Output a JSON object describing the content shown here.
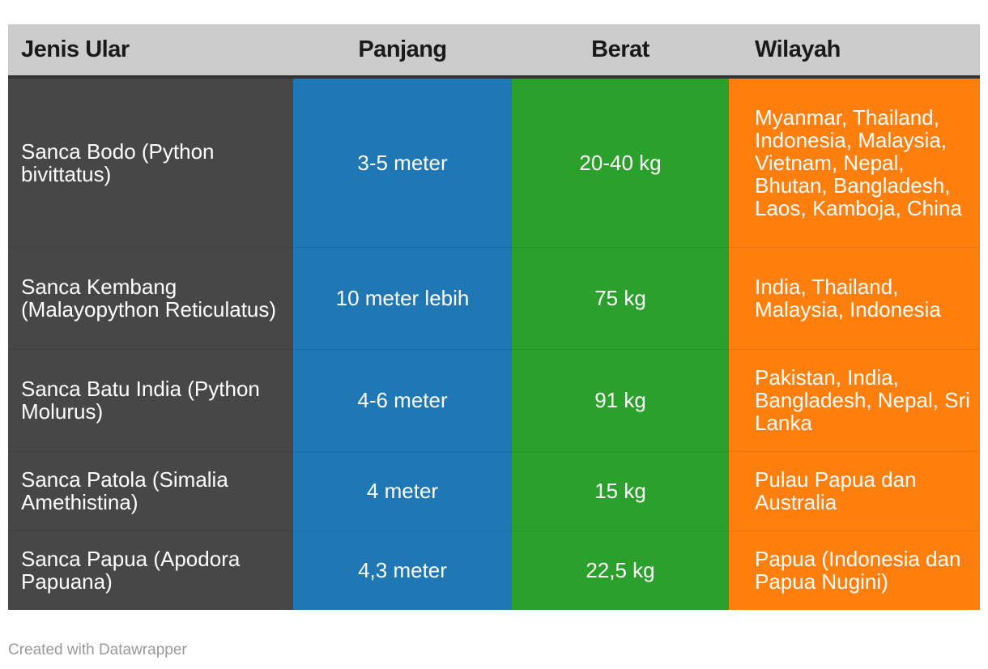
{
  "chart_data": {
    "type": "table",
    "columns": [
      "Jenis Ular",
      "Panjang",
      "Berat",
      "Wilayah"
    ],
    "rows": [
      {
        "jenis": "Sanca Bodo (Python bivittatus)",
        "panjang": "3-5 meter",
        "berat": "20-40 kg",
        "wilayah": "Myanmar, Thailand, Indonesia, Malaysia, Vietnam, Nepal, Bhutan, Bangladesh, Laos, Kamboja, China"
      },
      {
        "jenis": "Sanca Kembang (Malayopython Reticulatus)",
        "panjang": "10 meter lebih",
        "berat": "75 kg",
        "wilayah": "India, Thailand, Malaysia, Indonesia"
      },
      {
        "jenis": "Sanca Batu India (Python Molurus)",
        "panjang": "4-6 meter",
        "berat": "91 kg",
        "wilayah": "Pakistan, India, Bangladesh, Nepal, Sri Lanka"
      },
      {
        "jenis": "Sanca Patola (Simalia Amethistina)",
        "panjang": "4 meter",
        "berat": "15 kg",
        "wilayah": "Pulau Papua dan Australia"
      },
      {
        "jenis": "Sanca Papua (Apodora Papuana)",
        "panjang": "4,3 meter",
        "berat": "22,5 kg",
        "wilayah": "Papua (Indonesia dan Papua Nugini)"
      }
    ],
    "column_colors": {
      "jenis": "#474747",
      "panjang": "#1f77b4",
      "berat": "#2ca02c",
      "wilayah": "#ff7f0e"
    },
    "header_color": "#cccccc"
  },
  "footer": "Created with Datawrapper"
}
